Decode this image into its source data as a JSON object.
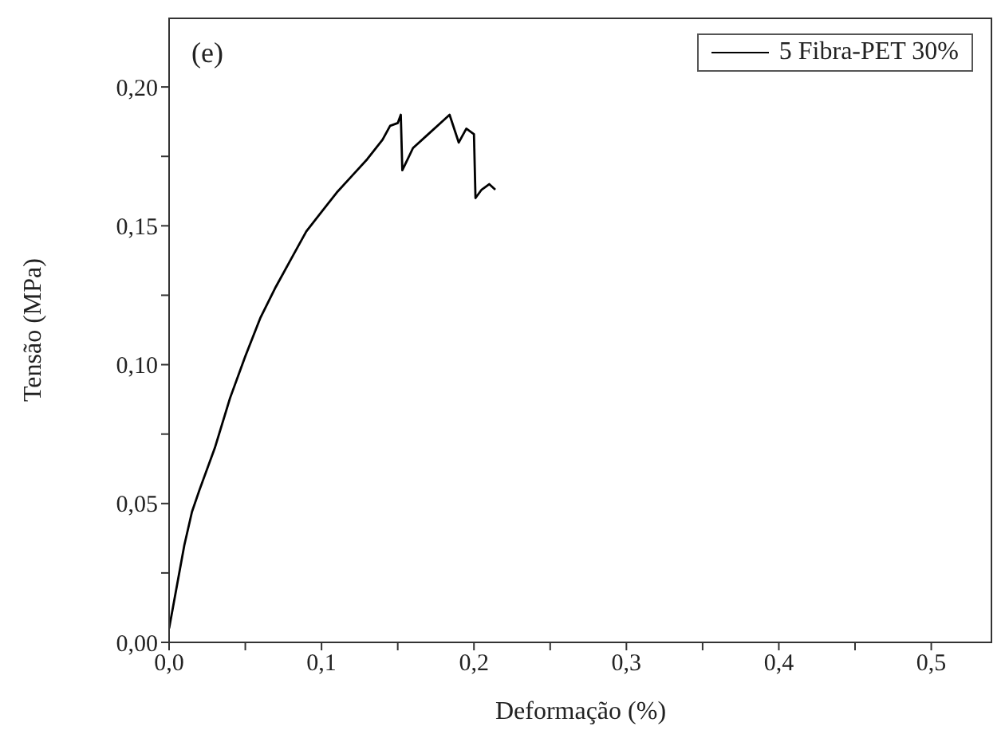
{
  "chart_data": {
    "type": "line",
    "xlabel": "Deformação (%)",
    "ylabel": "Tensão (MPa)",
    "annotations": [
      "(e)"
    ],
    "xlim": [
      0,
      0.54
    ],
    "xticks": [
      {
        "value": 0,
        "label": "0,0"
      },
      {
        "value": 0.05,
        "label": null
      },
      {
        "value": 0.1,
        "label": "0,1"
      },
      {
        "value": 0.15,
        "label": null
      },
      {
        "value": 0.2,
        "label": "0,2"
      },
      {
        "value": 0.25,
        "label": null
      },
      {
        "value": 0.3,
        "label": "0,3"
      },
      {
        "value": 0.35,
        "label": null
      },
      {
        "value": 0.4,
        "label": "0,4"
      },
      {
        "value": 0.45,
        "label": null
      },
      {
        "value": 0.5,
        "label": "0,5"
      }
    ],
    "ylim": [
      0,
      0.225
    ],
    "yticks": [
      {
        "value": 0,
        "label": "0,00"
      },
      {
        "value": 0.025,
        "label": null
      },
      {
        "value": 0.05,
        "label": "0,05"
      },
      {
        "value": 0.075,
        "label": null
      },
      {
        "value": 0.1,
        "label": "0,10"
      },
      {
        "value": 0.125,
        "label": null
      },
      {
        "value": 0.15,
        "label": "0,15"
      },
      {
        "value": 0.175,
        "label": null
      },
      {
        "value": 0.2,
        "label": "0,20"
      }
    ],
    "legend": "top right",
    "marker": "none",
    "line_style": "solid",
    "series": [
      {
        "name": "5 Fibra-PET 30%",
        "color": "#000000",
        "x": [
          0,
          0.005,
          0.01,
          0.015,
          0.02,
          0.03,
          0.04,
          0.05,
          0.06,
          0.07,
          0.08,
          0.09,
          0.1,
          0.11,
          0.12,
          0.13,
          0.14,
          0.145,
          0.15,
          0.152,
          0.153,
          0.16,
          0.17,
          0.18,
          0.184,
          0.19,
          0.195,
          0.2,
          0.201,
          0.205,
          0.21,
          0.214
        ],
        "values": [
          0.005,
          0.02,
          0.035,
          0.047,
          0.055,
          0.07,
          0.088,
          0.103,
          0.117,
          0.128,
          0.138,
          0.148,
          0.155,
          0.162,
          0.168,
          0.174,
          0.181,
          0.186,
          0.187,
          0.19,
          0.17,
          0.178,
          0.183,
          0.188,
          0.19,
          0.18,
          0.185,
          0.183,
          0.16,
          0.163,
          0.165,
          0.163
        ]
      }
    ]
  }
}
